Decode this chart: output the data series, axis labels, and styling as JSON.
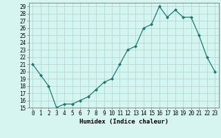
{
  "x": [
    0,
    1,
    2,
    3,
    4,
    5,
    6,
    7,
    8,
    9,
    10,
    11,
    12,
    13,
    14,
    15,
    16,
    17,
    18,
    19,
    20,
    21,
    22,
    23
  ],
  "y": [
    21,
    19.5,
    18,
    15,
    15.5,
    15.5,
    16,
    16.5,
    17.5,
    18.5,
    19,
    21,
    23,
    23.5,
    26,
    26.5,
    29,
    27.5,
    28.5,
    27.5,
    27.5,
    25,
    22,
    20
  ],
  "line_color": "#1a7a6e",
  "marker": "D",
  "marker_size": 2,
  "bg_color": "#d6f5f0",
  "grid_color": "#aaddd6",
  "xlabel": "Humidex (Indice chaleur)",
  "xlim": [
    -0.5,
    23.5
  ],
  "ylim": [
    15,
    29.5
  ],
  "yticks": [
    15,
    16,
    17,
    18,
    19,
    20,
    21,
    22,
    23,
    24,
    25,
    26,
    27,
    28,
    29
  ],
  "xticks": [
    0,
    1,
    2,
    3,
    4,
    5,
    6,
    7,
    8,
    9,
    10,
    11,
    12,
    13,
    14,
    15,
    16,
    17,
    18,
    19,
    20,
    21,
    22,
    23
  ],
  "tick_fontsize": 5.5,
  "xlabel_fontsize": 6.5
}
